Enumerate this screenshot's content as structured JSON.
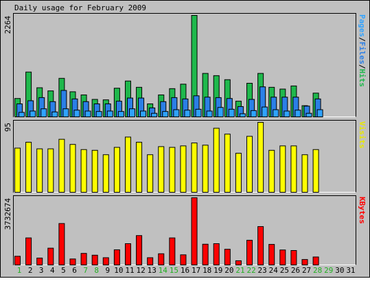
{
  "chart_data": {
    "type": "bar",
    "title": "Daily usage for February 2009",
    "x": [
      1,
      2,
      3,
      4,
      5,
      6,
      7,
      8,
      9,
      10,
      11,
      12,
      13,
      14,
      15,
      16,
      17,
      18,
      19,
      20,
      21,
      22,
      23,
      24,
      25,
      26,
      27,
      28,
      29,
      30,
      31
    ],
    "weekend_days": [
      1,
      7,
      8,
      14,
      15,
      21,
      22,
      28,
      29
    ],
    "panels": [
      {
        "id": "hits-panel",
        "ylabel_parts": [
          {
            "text": "Pages",
            "color": "#2fa2ff"
          },
          {
            "text": "/",
            "color": "#000000"
          },
          {
            "text": "Files",
            "color": "#2b7fe6"
          },
          {
            "text": "/",
            "color": "#000000"
          },
          {
            "text": "Hits",
            "color": "#1fb84c"
          }
        ],
        "ymax_label": "2264",
        "ylim": [
          0,
          2264
        ],
        "series": [
          {
            "name": "Hits",
            "color": "#1fb84c",
            "values": [
              410,
              1000,
              650,
              580,
              860,
              560,
              490,
              390,
              380,
              640,
              800,
              660,
              290,
              490,
              630,
              730,
              2264,
              970,
              920,
              830,
              350,
              750,
              970,
              660,
              620,
              690,
              250,
              530,
              null,
              null,
              null
            ]
          },
          {
            "name": "Files",
            "color": "#2b7fe6",
            "values": [
              290,
              360,
              430,
              340,
              590,
              400,
              340,
              290,
              290,
              350,
              420,
              420,
              200,
              340,
              430,
              400,
              470,
              440,
              430,
              410,
              230,
              390,
              670,
              440,
              440,
              440,
              240,
              400,
              null,
              null,
              null
            ]
          },
          {
            "name": "Pages",
            "color": "#2fa2ff",
            "values": [
              100,
              130,
              180,
              110,
              180,
              150,
              130,
              120,
              130,
              120,
              180,
              130,
              80,
              120,
              160,
              150,
              170,
              130,
              210,
              170,
              70,
              140,
              220,
              160,
              130,
              150,
              80,
              160,
              null,
              null,
              null
            ]
          }
        ]
      },
      {
        "id": "visits-panel",
        "ylabel_parts": [
          {
            "text": "Visits",
            "color": "#e8e800"
          }
        ],
        "ymax_label": "95",
        "ylim": [
          0,
          95
        ],
        "series": [
          {
            "name": "Visits",
            "color": "#ffff00",
            "values": [
              60,
              68,
              59,
              59,
              72,
              65,
              58,
              57,
              51,
              61,
              75,
              68,
              51,
              62,
              61,
              63,
              67,
              64,
              87,
              79,
              53,
              76,
              95,
              57,
              63,
              63,
              51,
              58,
              null,
              null,
              null
            ]
          }
        ]
      },
      {
        "id": "kbytes-panel",
        "ylabel_parts": [
          {
            "text": "KBytes",
            "color": "#ff0000"
          }
        ],
        "ymax_label": "3732674",
        "ylim": [
          0,
          3732674
        ],
        "series": [
          {
            "name": "KBytes",
            "color": "#ff0000",
            "values": [
              480000,
              1500000,
              380000,
              930000,
              2300000,
              330000,
              640000,
              540000,
              400000,
              840000,
              1180000,
              1630000,
              400000,
              620000,
              1500000,
              560000,
              3732674,
              1150000,
              1180000,
              870000,
              230000,
              1370000,
              2130000,
              1140000,
              830000,
              800000,
              300000,
              440000,
              null,
              null,
              null
            ]
          }
        ]
      }
    ]
  }
}
